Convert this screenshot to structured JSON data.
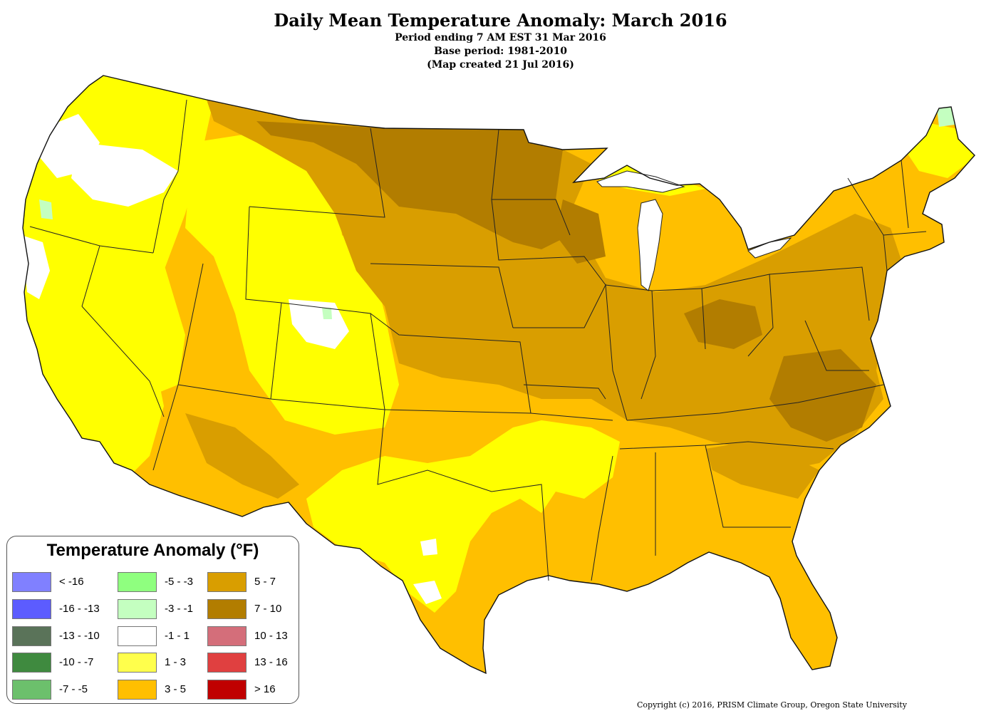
{
  "header": {
    "title": "Daily Mean Temperature Anomaly: March 2016",
    "period": "Period ending 7 AM EST 31 Mar 2016",
    "base_period": "Base period: 1981-2010",
    "created": "(Map created 21 Jul 2016)"
  },
  "legend": {
    "title": "Temperature Anomaly (°F)",
    "items": [
      {
        "label": "< -16",
        "color": "#8080ff"
      },
      {
        "label": "-16 - -13",
        "color": "#5c5cff"
      },
      {
        "label": "-13 - -10",
        "color": "#5a7359"
      },
      {
        "label": "-10 - -7",
        "color": "#3f8a3f"
      },
      {
        "label": "-7 - -5",
        "color": "#6cc06c"
      },
      {
        "label": "-5 - -3",
        "color": "#8fff7f"
      },
      {
        "label": "-3 - -1",
        "color": "#c4ffc0"
      },
      {
        "label": "-1 - 1",
        "color": "#ffffff"
      },
      {
        "label": "1 - 3",
        "color": "#ffff4c"
      },
      {
        "label": "3 - 5",
        "color": "#ffbf00"
      },
      {
        "label": "5 - 7",
        "color": "#d99e00"
      },
      {
        "label": "7 - 10",
        "color": "#b27d00"
      },
      {
        "label": "10 - 13",
        "color": "#d46e7a"
      },
      {
        "label": "13 - 16",
        "color": "#e04040"
      },
      {
        "label": "> 16",
        "color": "#c00000"
      }
    ]
  },
  "map": {
    "region": "Contiguous United States",
    "colors": {
      "near_normal": "#ffffff",
      "slightly_warm": "#ffff00",
      "warm": "#ffbf00",
      "warmer": "#d99e00",
      "warmest": "#b27d00",
      "cool_patch": "#c4ffc0"
    }
  },
  "footer": {
    "copyright": "Copyright (c) 2016, PRISM Climate Group, Oregon State University"
  }
}
